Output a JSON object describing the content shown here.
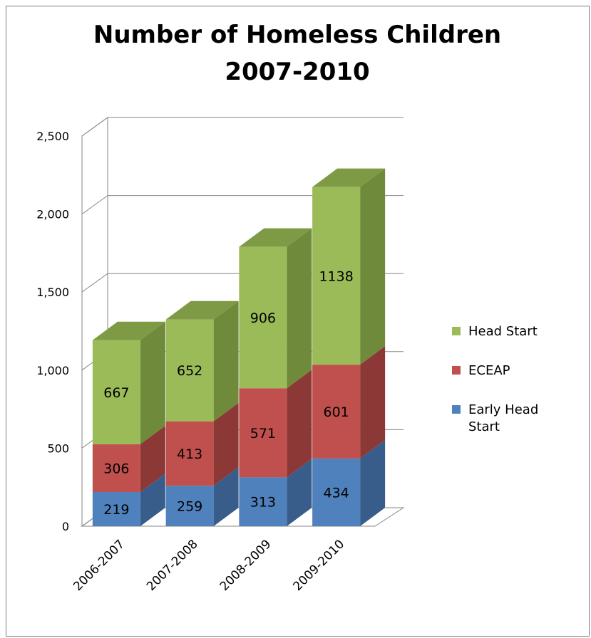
{
  "chart_data": {
    "type": "bar",
    "stacked": true,
    "three_d": true,
    "title": "Number of Homeless Children 2007-2010",
    "title_lines": [
      "Number of Homeless Children",
      "2007-2010"
    ],
    "categories": [
      "2006-2007",
      "2007-2008",
      "2008-2009",
      "2009-2010"
    ],
    "series": [
      {
        "name": "Early Head Start",
        "legend_lines": [
          "Early Head",
          "Start"
        ],
        "values": [
          219,
          259,
          313,
          434
        ],
        "color": "#4f81bd",
        "side": "#385d8a",
        "top": "#6d97cc"
      },
      {
        "name": "ECEAP",
        "legend_lines": [
          "ECEAP"
        ],
        "values": [
          306,
          413,
          571,
          601
        ],
        "color": "#c0504d",
        "side": "#8c3836",
        "top": "#d9706d"
      },
      {
        "name": "Head Start",
        "legend_lines": [
          "Head Start"
        ],
        "values": [
          667,
          652,
          906,
          1138
        ],
        "color": "#9bbb59",
        "side": "#6f8a3b",
        "top": "#7e9a45"
      }
    ],
    "ylim": [
      0,
      2500
    ],
    "yticks": [
      0,
      500,
      1000,
      1500,
      2000,
      2500
    ],
    "ytick_labels": [
      "0",
      "500",
      "1,000",
      "1,500",
      "2,000",
      "2,500"
    ],
    "xlabel": "",
    "ylabel": "",
    "grid": true,
    "legend_position": "right"
  }
}
